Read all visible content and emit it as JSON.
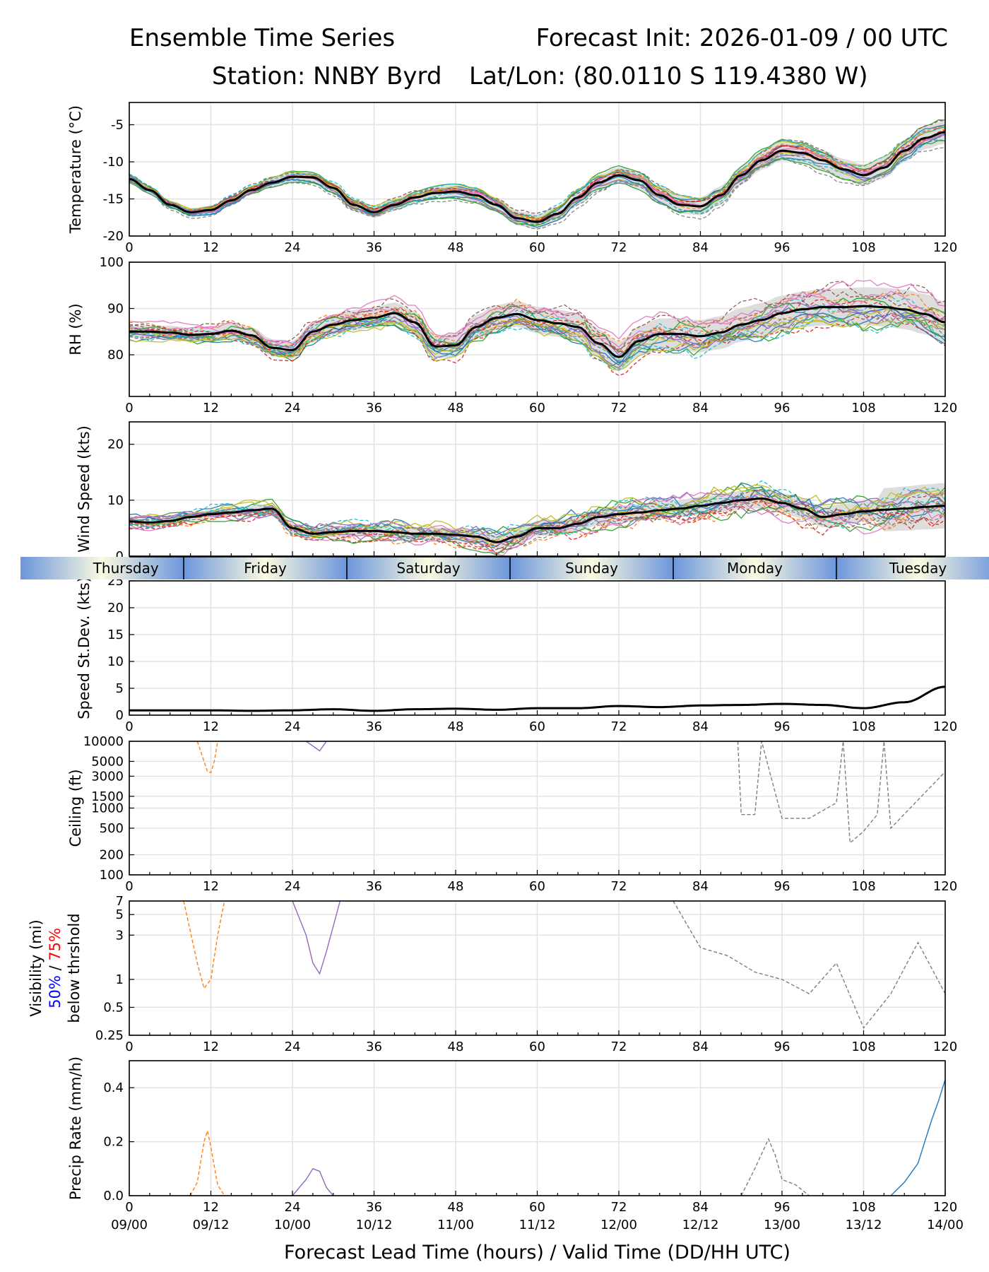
{
  "header": {
    "title_left": "Ensemble Time Series",
    "title_right": "Forecast Init: 2026-01-09 / 00 UTC",
    "station": "Station: NNBY Byrd",
    "latlon": "Lat/Lon: (80.0110 S 119.4380 W)"
  },
  "x_axis": {
    "label": "Forecast Lead Time (hours) / Valid Time (DD/HH UTC)",
    "ticks": [
      0,
      12,
      24,
      36,
      48,
      60,
      72,
      84,
      96,
      108,
      120
    ],
    "valid_time_labels": [
      "09/00",
      "09/12",
      "10/00",
      "10/12",
      "11/00",
      "11/12",
      "12/00",
      "12/12",
      "13/00",
      "13/12",
      "14/00"
    ],
    "range": [
      0,
      120
    ]
  },
  "day_band": {
    "labels": [
      "Thursday",
      "Friday",
      "Saturday",
      "Sunday",
      "Monday",
      "Tuesday"
    ],
    "day_boundaries_hours": [
      8,
      32,
      56,
      80,
      104
    ]
  },
  "colors": {
    "mean_line": "#000000",
    "spread_band": "#d9d9d9",
    "member_palette": [
      "#1f77b4",
      "#ff7f0e",
      "#2ca02c",
      "#d62728",
      "#9467bd",
      "#8c564b",
      "#e377c2",
      "#7f7f7f",
      "#bcbd22",
      "#17becf"
    ],
    "vis_note_50": "#0000ff",
    "vis_note_75": "#ff0000"
  },
  "chart_data": [
    {
      "type": "line",
      "id": "temperature",
      "ylabel": "Temperature (°C)",
      "ylim": [
        -20,
        -2
      ],
      "yticks": [
        -20,
        -15,
        -10,
        -5
      ],
      "series": [
        {
          "name": "ensemble mean",
          "x": [
            0,
            3,
            6,
            9,
            12,
            15,
            18,
            21,
            24,
            27,
            30,
            33,
            36,
            39,
            42,
            45,
            48,
            51,
            54,
            57,
            60,
            63,
            66,
            69,
            72,
            75,
            78,
            81,
            84,
            87,
            90,
            93,
            96,
            99,
            102,
            105,
            108,
            111,
            114,
            117,
            120
          ],
          "values": [
            -12.3,
            -13.8,
            -15.8,
            -16.8,
            -16.5,
            -15.2,
            -13.8,
            -12.8,
            -12.0,
            -12.1,
            -13.5,
            -15.8,
            -16.8,
            -15.8,
            -14.8,
            -14.2,
            -14.0,
            -14.5,
            -15.8,
            -17.6,
            -18.1,
            -17.0,
            -14.8,
            -12.8,
            -11.8,
            -12.5,
            -14.5,
            -15.8,
            -16.0,
            -14.5,
            -11.8,
            -9.8,
            -8.5,
            -8.8,
            -9.8,
            -11.0,
            -11.8,
            -10.8,
            -8.5,
            -6.8,
            -6.0
          ]
        }
      ]
    },
    {
      "type": "line",
      "id": "rh",
      "ylabel": "RH (%)",
      "ylim": [
        71,
        100
      ],
      "yticks": [
        80,
        90,
        100
      ],
      "series": [
        {
          "name": "ensemble mean",
          "x": [
            0,
            3,
            6,
            9,
            12,
            15,
            18,
            21,
            24,
            27,
            30,
            33,
            36,
            39,
            42,
            45,
            48,
            51,
            54,
            57,
            60,
            63,
            66,
            69,
            72,
            75,
            78,
            81,
            84,
            87,
            90,
            93,
            96,
            99,
            102,
            105,
            108,
            111,
            114,
            117,
            120
          ],
          "values": [
            85.0,
            85.0,
            84.8,
            84.3,
            84.5,
            85.2,
            84.2,
            81.5,
            81.0,
            85.0,
            86.5,
            87.5,
            88.0,
            89.0,
            87.0,
            81.8,
            82.0,
            86.0,
            88.0,
            88.8,
            87.5,
            86.8,
            86.0,
            82.5,
            79.5,
            83.0,
            84.5,
            84.5,
            84.0,
            84.8,
            86.5,
            87.5,
            89.0,
            89.8,
            90.3,
            90.3,
            90.5,
            90.3,
            89.8,
            88.8,
            87.0
          ]
        }
      ]
    },
    {
      "type": "line",
      "id": "wind",
      "ylabel": "Wind Speed (kts)",
      "ylim": [
        0,
        24
      ],
      "yticks": [
        0,
        10,
        20
      ],
      "series": [
        {
          "name": "ensemble mean",
          "x": [
            0,
            3,
            6,
            9,
            12,
            15,
            18,
            21,
            24,
            27,
            30,
            33,
            36,
            39,
            42,
            45,
            48,
            51,
            54,
            57,
            60,
            63,
            66,
            69,
            72,
            75,
            78,
            81,
            84,
            87,
            90,
            93,
            96,
            99,
            102,
            105,
            108,
            111,
            114,
            117,
            120
          ],
          "values": [
            6.2,
            6.0,
            6.3,
            7.0,
            7.5,
            7.8,
            8.2,
            8.5,
            5.0,
            4.0,
            4.3,
            4.5,
            4.5,
            4.3,
            4.0,
            4.0,
            3.8,
            3.5,
            2.5,
            3.5,
            5.0,
            5.0,
            5.8,
            7.0,
            7.5,
            7.8,
            8.2,
            8.5,
            9.0,
            9.5,
            10.0,
            10.3,
            9.5,
            8.5,
            7.0,
            7.5,
            8.0,
            8.3,
            8.5,
            8.8,
            9.0
          ]
        }
      ]
    },
    {
      "type": "line",
      "id": "speed_stdev",
      "ylabel": "Speed St.Dev. (kts)",
      "ylim": [
        0,
        25
      ],
      "yticks": [
        0,
        5,
        10,
        15,
        20,
        25
      ],
      "series": [
        {
          "name": "speed standard deviation",
          "x": [
            0,
            6,
            12,
            18,
            24,
            30,
            36,
            42,
            48,
            54,
            60,
            66,
            72,
            78,
            84,
            90,
            96,
            102,
            108,
            114,
            120
          ],
          "values": [
            0.9,
            0.9,
            0.9,
            0.8,
            0.9,
            1.1,
            0.8,
            1.1,
            1.2,
            1.0,
            1.3,
            1.3,
            1.7,
            1.5,
            1.8,
            1.9,
            2.1,
            1.9,
            1.3,
            2.4,
            5.3
          ]
        }
      ]
    },
    {
      "type": "line",
      "id": "ceiling",
      "ylabel": "Ceiling (ft)",
      "yscale": "log",
      "ylim": [
        100,
        10000
      ],
      "yticks": [
        100,
        200,
        500,
        1000,
        1500,
        3000,
        5000,
        10000
      ],
      "series": [
        {
          "name": "member dip 09/12",
          "x": [
            10,
            11,
            11.5,
            12,
            12.5,
            13
          ],
          "values": [
            10000,
            5000,
            3500,
            3400,
            5000,
            10000
          ]
        },
        {
          "name": "member dip 10/03",
          "x": [
            26,
            27,
            28,
            29
          ],
          "values": [
            10000,
            8500,
            7200,
            10000
          ]
        },
        {
          "name": "members 13/00-14/00",
          "x": [
            89.5,
            90,
            92,
            93,
            96,
            100,
            104,
            105,
            106,
            108,
            110,
            111,
            112,
            120
          ],
          "values": [
            10000,
            800,
            800,
            10000,
            700,
            700,
            1200,
            10000,
            300,
            450,
            800,
            10000,
            500,
            3500
          ]
        }
      ]
    },
    {
      "type": "line",
      "id": "visibility",
      "ylabel": "Visibility (mi)",
      "ylabel_note": [
        "50%",
        "/",
        "75%",
        "below thrshold"
      ],
      "yscale": "log",
      "ylim": [
        0.25,
        7
      ],
      "yticks": [
        0.25,
        0.5,
        1,
        3,
        5,
        7
      ],
      "series": [
        {
          "name": "member 09/12",
          "x": [
            8,
            10,
            11,
            12,
            13,
            14
          ],
          "values": [
            7,
            1.5,
            0.8,
            1.0,
            3,
            7
          ]
        },
        {
          "name": "member 10/03",
          "x": [
            24,
            26,
            27,
            28,
            29,
            31
          ],
          "values": [
            7,
            3,
            1.5,
            1.15,
            2,
            7
          ]
        },
        {
          "name": "members 12/12-14/00",
          "x": [
            80,
            84,
            88,
            92,
            96,
            100,
            104,
            108,
            112,
            116,
            120
          ],
          "values": [
            7,
            2.2,
            1.8,
            1.2,
            1.0,
            0.7,
            1.5,
            0.3,
            0.7,
            2.5,
            0.7
          ]
        }
      ]
    },
    {
      "type": "line",
      "id": "precip",
      "ylabel": "Precip Rate (mm/h)",
      "ylim": [
        0,
        0.5
      ],
      "yticks": [
        0.0,
        0.2,
        0.4
      ],
      "series": [
        {
          "name": "member 09/12",
          "x": [
            9,
            10,
            11,
            11.5,
            12,
            13,
            14
          ],
          "values": [
            0.0,
            0.05,
            0.2,
            0.24,
            0.18,
            0.04,
            0.0
          ]
        },
        {
          "name": "member 10/03",
          "x": [
            24,
            26,
            27,
            28,
            29,
            30
          ],
          "values": [
            0.0,
            0.06,
            0.1,
            0.09,
            0.03,
            0.0
          ]
        },
        {
          "name": "member 13/00",
          "x": [
            90,
            92,
            94,
            95,
            96,
            98,
            100
          ],
          "values": [
            0.0,
            0.1,
            0.21,
            0.15,
            0.06,
            0.04,
            0.0
          ]
        },
        {
          "name": "member 14/00",
          "x": [
            112,
            114,
            116,
            117,
            118,
            119,
            120
          ],
          "values": [
            0.0,
            0.05,
            0.12,
            0.2,
            0.28,
            0.35,
            0.43
          ]
        }
      ]
    }
  ]
}
